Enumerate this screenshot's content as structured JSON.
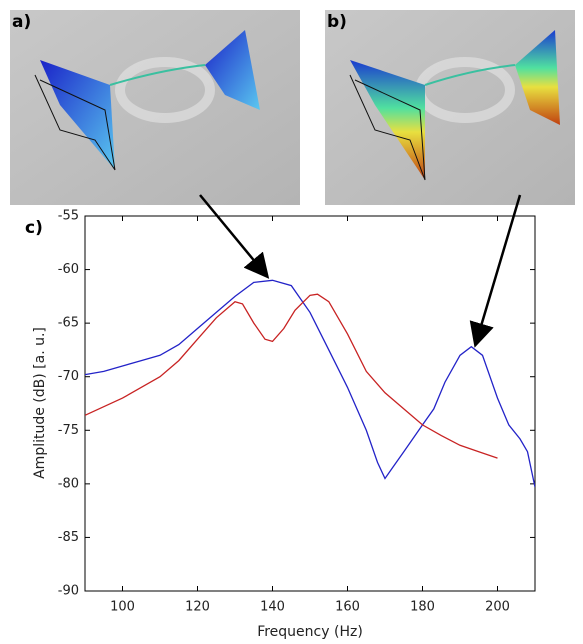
{
  "panel_labels": [
    "a)",
    "b)"
  ],
  "chart_data": {
    "type": "line",
    "panel_label": "c)",
    "x_label": "Frequency (Hz)",
    "y_label": "Amplitude (dB) [a. u.]",
    "xlim": [
      90,
      210
    ],
    "ylim": [
      -90,
      -55
    ],
    "xticks": [
      100,
      120,
      140,
      160,
      180,
      200
    ],
    "yticks": [
      -90,
      -85,
      -80,
      -75,
      -70,
      -65,
      -60,
      -55
    ],
    "series": [
      {
        "color": "#2323c8",
        "x": [
          90,
          95,
          100,
          105,
          110,
          115,
          120,
          125,
          130,
          135,
          140,
          145,
          150,
          155,
          160,
          165,
          168,
          170,
          172,
          175,
          180,
          183,
          186,
          190,
          193,
          196,
          200,
          203,
          206,
          208,
          210
        ],
        "values": [
          -69.8,
          -69.5,
          -69,
          -68.5,
          -68,
          -67,
          -65.5,
          -64,
          -62.5,
          -61.2,
          -61,
          -61.5,
          -64,
          -67.5,
          -71,
          -75,
          -78,
          -79.5,
          -78.5,
          -77,
          -74.5,
          -73,
          -70.5,
          -68,
          -67.2,
          -68,
          -72,
          -74.5,
          -75.8,
          -77,
          -80.3
        ]
      },
      {
        "color": "#c82323",
        "x": [
          90,
          100,
          110,
          115,
          120,
          125,
          130,
          132,
          135,
          138,
          140,
          143,
          146,
          150,
          152,
          155,
          160,
          165,
          170,
          175,
          180,
          185,
          190,
          195,
          200
        ],
        "values": [
          -73.6,
          -72,
          -70,
          -68.5,
          -66.5,
          -64.5,
          -63,
          -63.2,
          -65,
          -66.5,
          -66.7,
          -65.5,
          -63.8,
          -62.4,
          -62.3,
          -63,
          -66,
          -69.5,
          -71.5,
          -73,
          -74.5,
          -75.5,
          -76.4,
          -77,
          -77.6
        ]
      }
    ]
  }
}
